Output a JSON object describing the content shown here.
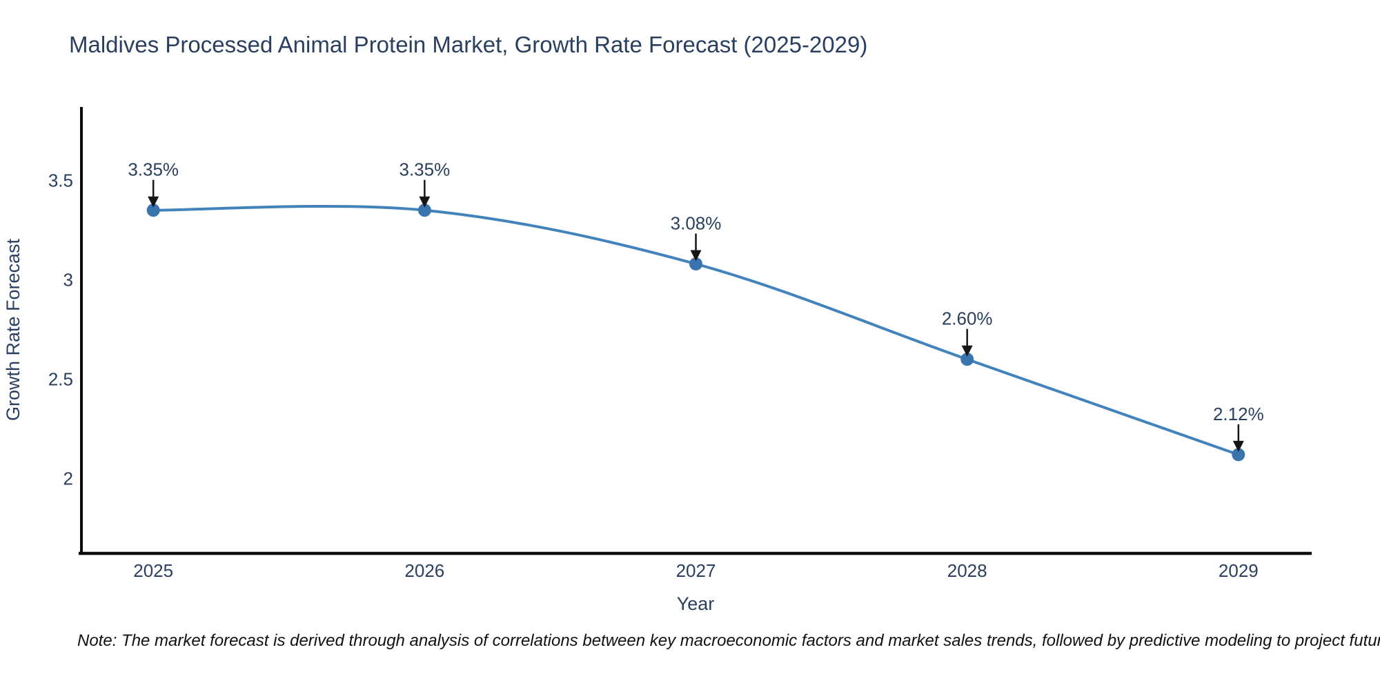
{
  "chart_data": {
    "type": "line",
    "title": "Maldives Processed Animal Protein Market, Growth Rate Forecast (2025-2029)",
    "xlabel": "Year",
    "ylabel": "Growth Rate Forecast",
    "x": [
      2025,
      2026,
      2027,
      2028,
      2029
    ],
    "x_tick_labels": [
      "2025",
      "2026",
      "2027",
      "2028",
      "2029"
    ],
    "series": [
      {
        "name": "Growth Rate Forecast",
        "values": [
          3.35,
          3.35,
          3.08,
          2.6,
          2.12
        ]
      }
    ],
    "point_labels": [
      "3.35%",
      "3.35%",
      "3.08%",
      "2.60%",
      "2.12%"
    ],
    "yticks": [
      2,
      2.5,
      3,
      3.5
    ],
    "ytick_labels": [
      "2",
      "2.5",
      "3",
      "3.5"
    ],
    "xlim": [
      2024.735,
      2029.27
    ],
    "ylim": [
      1.63,
      3.87
    ],
    "grid": false,
    "legend": false,
    "line_shape": "spline",
    "line_color": "#4383bb",
    "marker_color": "#3a74af",
    "axis_color": "#0d0d0d",
    "text_color": "#2a3f5f",
    "arrow_color": "#161616",
    "note": "Note: The market forecast is derived through analysis of correlations between key macroeconomic factors and market sales trends, followed by predictive modeling to project future sales"
  }
}
